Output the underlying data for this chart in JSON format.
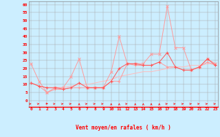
{
  "hours": [
    0,
    1,
    2,
    3,
    4,
    5,
    6,
    7,
    8,
    9,
    10,
    11,
    12,
    13,
    14,
    15,
    16,
    17,
    18,
    19,
    20,
    21,
    22,
    23
  ],
  "wind_gust": [
    23,
    12,
    5,
    8,
    8,
    15,
    26,
    8,
    8,
    8,
    18,
    40,
    23,
    23,
    23,
    29,
    29,
    59,
    33,
    33,
    19,
    21,
    26,
    23
  ],
  "wind_mean": [
    11,
    9,
    8,
    8,
    7,
    8,
    11,
    8,
    8,
    8,
    12,
    20,
    23,
    23,
    22,
    22,
    24,
    30,
    21,
    19,
    19,
    21,
    26,
    22
  ],
  "wind_trend": [
    11,
    9,
    8,
    8,
    8,
    9,
    10,
    10,
    11,
    12,
    13,
    15,
    16,
    17,
    18,
    18,
    19,
    20,
    21,
    21,
    22,
    22,
    23,
    23
  ],
  "wind_min": [
    11,
    9,
    5,
    7,
    7,
    8,
    8,
    8,
    8,
    8,
    12,
    12,
    23,
    22,
    22,
    22,
    24,
    21,
    21,
    19,
    19,
    21,
    24,
    22
  ],
  "bg_color": "#cceeff",
  "grid_color": "#aaaaaa",
  "color_gust": "#ff9999",
  "color_mean": "#ff5555",
  "color_trend": "#ffbbbb",
  "color_min": "#ff9999",
  "xlabel": "Vent moyen/en rafales ( km/h )",
  "yticks": [
    0,
    5,
    10,
    15,
    20,
    25,
    30,
    35,
    40,
    45,
    50,
    55,
    60
  ],
  "ylim": [
    -4,
    62
  ],
  "xlim": [
    -0.3,
    23.3
  ],
  "arrow_angles_deg": [
    45,
    45,
    0,
    45,
    45,
    45,
    90,
    45,
    45,
    45,
    90,
    90,
    45,
    90,
    90,
    90,
    90,
    45,
    45,
    45,
    45,
    45,
    45,
    45
  ]
}
